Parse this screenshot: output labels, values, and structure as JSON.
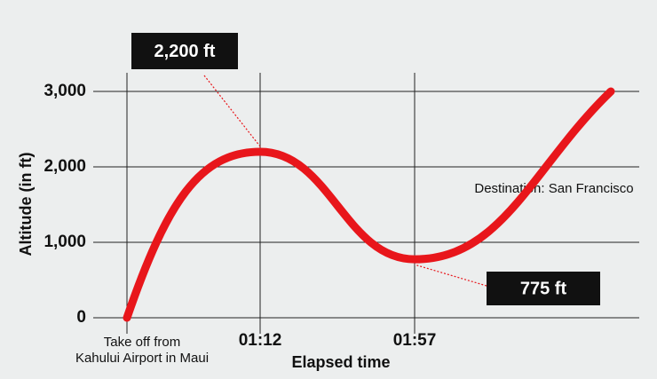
{
  "chart_data": {
    "type": "line",
    "y_label": "Altitude (in ft)",
    "x_label": "Elapsed time",
    "categories": [
      "Take off from Kahului Airport in Maui",
      "01:12",
      "01:57",
      null
    ],
    "series": [
      {
        "name": "Altitude",
        "color": "#e8161b",
        "values": [
          0,
          2200,
          775,
          3000
        ],
        "value_labels": [
          null,
          "2,200 ft",
          "775 ft",
          null
        ]
      }
    ],
    "annotation": "Destination: San Francisco",
    "ylim": [
      0,
      3000
    ],
    "yticks": [
      0,
      {
        "value": 1000,
        "label": "1,000"
      },
      {
        "value": 2000,
        "label": "2,000"
      },
      {
        "value": 3000,
        "label": "3,000"
      }
    ],
    "grid": true
  }
}
